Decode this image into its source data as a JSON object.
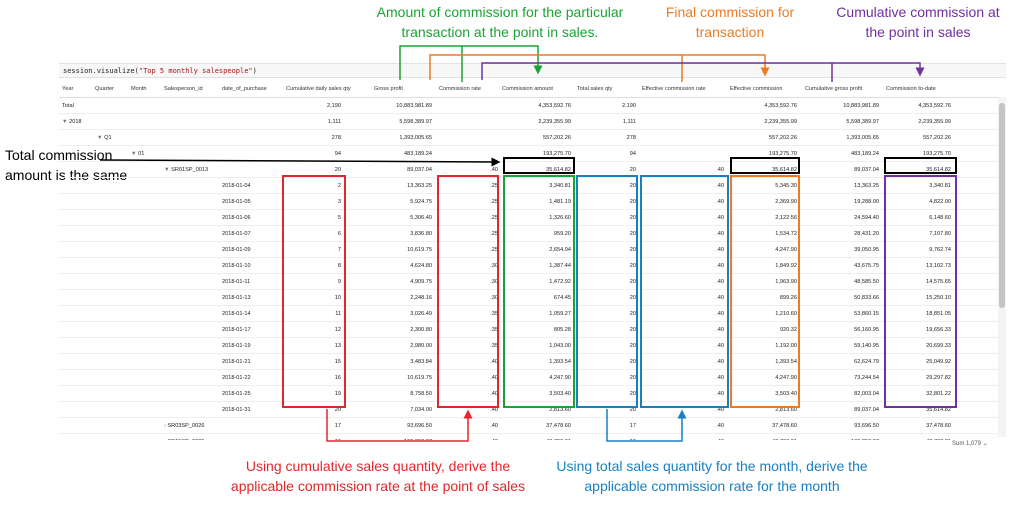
{
  "callouts": {
    "green": "Amount of commission for the particular transaction at the point in sales.",
    "orange": "Final commission for transaction",
    "purple": "Cumulative commission at the point in sales",
    "left": "Total commission amount is the same",
    "red_bottom": "Using cumulative sales quantity, derive the applicable commission rate at the point of sales",
    "blue_bottom": "Using total sales quantity for the month, derive the applicable commission rate for the month"
  },
  "colors": {
    "green": "#1aa335",
    "orange": "#ee7b22",
    "purple": "#7030a0",
    "red": "#e3262d",
    "blue": "#1a7fc1",
    "black": "#000000"
  },
  "code": {
    "prefix": "session.visualize(",
    "arg": "\"Top 5 monthly salespeople\"",
    "suffix": ")"
  },
  "headers": {
    "year": "Year",
    "quarter": "Quarter",
    "month": "Month",
    "salesperson": "Salesperson_id",
    "date": "date_of_purchase",
    "cum_qty": "Cumulative daily sales qty",
    "gross": "Gross profit",
    "comm_rate": "Commission rate",
    "comm_amt": "Commission amount",
    "total_qty": "Total sales qty",
    "eff_rate": "Effective commission rate",
    "eff_comm": "Effective commission",
    "cum_gross": "Cumulative gross profit",
    "comm_todate": "Commission to-date"
  },
  "rows": [
    {
      "label": "Total",
      "level": "total",
      "cum_qty": "2,190",
      "gross": "10,883,981.89",
      "comm_rate": "",
      "comm_amt": "4,353,592.76",
      "total_qty": "2,190",
      "eff_rate": "",
      "eff_comm": "4,353,592.76",
      "cum_gross": "10,883,981.89",
      "comm_todate": "4,353,592.76"
    },
    {
      "label": "2018",
      "level": "year",
      "cum_qty": "1,111",
      "gross": "5,598,389.97",
      "comm_rate": "",
      "comm_amt": "2,239,355.99",
      "total_qty": "1,111",
      "eff_rate": "",
      "eff_comm": "2,239,355.99",
      "cum_gross": "5,598,389.97",
      "comm_todate": "2,239,355.99"
    },
    {
      "label": "Q1",
      "level": "quarter",
      "cum_qty": "278",
      "gross": "1,393,005.65",
      "comm_rate": "",
      "comm_amt": "557,202.26",
      "total_qty": "278",
      "eff_rate": "",
      "eff_comm": "557,202.26",
      "cum_gross": "1,393,005.65",
      "comm_todate": "557,202.26"
    },
    {
      "label": "01",
      "level": "month",
      "cum_qty": "94",
      "gross": "483,189.24",
      "comm_rate": "",
      "comm_amt": "193,275.70",
      "total_qty": "94",
      "eff_rate": "",
      "eff_comm": "193,275.70",
      "cum_gross": "483,189.24",
      "comm_todate": "193,275.70"
    },
    {
      "label": "SR01SP_0013",
      "level": "sp",
      "cum_qty": "20",
      "gross": "89,037.04",
      "comm_rate": ".40",
      "comm_amt": "35,614.82",
      "total_qty": "20",
      "eff_rate": ".40",
      "eff_comm": "35,614.82",
      "cum_gross": "89,037.04",
      "comm_todate": "35,614.82"
    },
    {
      "label": "2018-01-04",
      "level": "date",
      "cum_qty": "2",
      "gross": "13,363.25",
      "comm_rate": ".25",
      "comm_amt": "3,340.81",
      "total_qty": "20",
      "eff_rate": ".40",
      "eff_comm": "5,345.30",
      "cum_gross": "13,363.25",
      "comm_todate": "3,340.81"
    },
    {
      "label": "2018-01-05",
      "level": "date",
      "cum_qty": "3",
      "gross": "5,924.75",
      "comm_rate": ".25",
      "comm_amt": "1,481.19",
      "total_qty": "20",
      "eff_rate": ".40",
      "eff_comm": "2,369.90",
      "cum_gross": "19,288.00",
      "comm_todate": "4,822.00"
    },
    {
      "label": "2018-01-06",
      "level": "date",
      "cum_qty": "5",
      "gross": "5,306.40",
      "comm_rate": ".25",
      "comm_amt": "1,326.60",
      "total_qty": "20",
      "eff_rate": ".40",
      "eff_comm": "2,122.56",
      "cum_gross": "24,594.40",
      "comm_todate": "6,148.60"
    },
    {
      "label": "2018-01-07",
      "level": "date",
      "cum_qty": "6",
      "gross": "3,836.80",
      "comm_rate": ".25",
      "comm_amt": "959.20",
      "total_qty": "20",
      "eff_rate": ".40",
      "eff_comm": "1,534.72",
      "cum_gross": "28,431.20",
      "comm_todate": "7,107.80"
    },
    {
      "label": "2018-01-09",
      "level": "date",
      "cum_qty": "7",
      "gross": "10,619.75",
      "comm_rate": ".25",
      "comm_amt": "2,654.94",
      "total_qty": "20",
      "eff_rate": ".40",
      "eff_comm": "4,247.90",
      "cum_gross": "39,050.95",
      "comm_todate": "9,762.74"
    },
    {
      "label": "2018-01-10",
      "level": "date",
      "cum_qty": "8",
      "gross": "4,624.80",
      "comm_rate": ".30",
      "comm_amt": "1,387.44",
      "total_qty": "20",
      "eff_rate": ".40",
      "eff_comm": "1,849.92",
      "cum_gross": "43,675.75",
      "comm_todate": "13,102.73"
    },
    {
      "label": "2018-01-11",
      "level": "date",
      "cum_qty": "9",
      "gross": "4,909.75",
      "comm_rate": ".30",
      "comm_amt": "1,472.92",
      "total_qty": "20",
      "eff_rate": ".40",
      "eff_comm": "1,963.90",
      "cum_gross": "48,585.50",
      "comm_todate": "14,575.65"
    },
    {
      "label": "2018-01-13",
      "level": "date",
      "cum_qty": "10",
      "gross": "2,248.16",
      "comm_rate": ".30",
      "comm_amt": "674.45",
      "total_qty": "20",
      "eff_rate": ".40",
      "eff_comm": "899.26",
      "cum_gross": "50,833.66",
      "comm_todate": "15,250.10"
    },
    {
      "label": "2018-01-14",
      "level": "date",
      "cum_qty": "11",
      "gross": "3,026.49",
      "comm_rate": ".35",
      "comm_amt": "1,059.27",
      "total_qty": "20",
      "eff_rate": ".40",
      "eff_comm": "1,210.60",
      "cum_gross": "53,860.15",
      "comm_todate": "18,851.05"
    },
    {
      "label": "2018-01-17",
      "level": "date",
      "cum_qty": "12",
      "gross": "2,300.80",
      "comm_rate": ".35",
      "comm_amt": "805.28",
      "total_qty": "20",
      "eff_rate": ".40",
      "eff_comm": "920.32",
      "cum_gross": "56,160.95",
      "comm_todate": "19,656.33"
    },
    {
      "label": "2018-01-19",
      "level": "date",
      "cum_qty": "13",
      "gross": "2,980.00",
      "comm_rate": ".35",
      "comm_amt": "1,043.00",
      "total_qty": "20",
      "eff_rate": ".40",
      "eff_comm": "1,192.00",
      "cum_gross": "59,140.95",
      "comm_todate": "20,699.33"
    },
    {
      "label": "2018-01-21",
      "level": "date",
      "cum_qty": "15",
      "gross": "3,483.84",
      "comm_rate": ".40",
      "comm_amt": "1,393.54",
      "total_qty": "20",
      "eff_rate": ".40",
      "eff_comm": "1,393.54",
      "cum_gross": "62,624.79",
      "comm_todate": "25,049.92"
    },
    {
      "label": "2018-01-22",
      "level": "date",
      "cum_qty": "16",
      "gross": "10,619.75",
      "comm_rate": ".40",
      "comm_amt": "4,247.90",
      "total_qty": "20",
      "eff_rate": ".40",
      "eff_comm": "4,247.90",
      "cum_gross": "73,244.54",
      "comm_todate": "29,297.82"
    },
    {
      "label": "2018-01-25",
      "level": "date",
      "cum_qty": "19",
      "gross": "8,758.50",
      "comm_rate": ".40",
      "comm_amt": "3,503.40",
      "total_qty": "20",
      "eff_rate": ".40",
      "eff_comm": "3,503.40",
      "cum_gross": "82,003.04",
      "comm_todate": "32,801.22"
    },
    {
      "label": "2018-01-31",
      "level": "date",
      "cum_qty": "20",
      "gross": "7,034.00",
      "comm_rate": ".40",
      "comm_amt": "2,813.60",
      "total_qty": "20",
      "eff_rate": ".40",
      "eff_comm": "2,813.60",
      "cum_gross": "89,037.04",
      "comm_todate": "35,614.82"
    },
    {
      "label": "SR03SP_0026",
      "level": "sp-collapsed",
      "cum_qty": "17",
      "gross": "93,696.50",
      "comm_rate": ".40",
      "comm_amt": "37,478.60",
      "total_qty": "17",
      "eff_rate": ".40",
      "eff_comm": "37,478.60",
      "cum_gross": "93,696.50",
      "comm_todate": "37,478.60"
    },
    {
      "label": "SR15SP_0025",
      "level": "sp-collapsed",
      "cum_qty": "19",
      "gross": "109,258.27",
      "comm_rate": ".40",
      "comm_amt": "43,703.31",
      "total_qty": "19",
      "eff_rate": ".40",
      "eff_comm": "43,703.31",
      "cum_gross": "109,258.27",
      "comm_todate": "43,703.31"
    }
  ],
  "status": {
    "sum": "Sum 1,079"
  }
}
